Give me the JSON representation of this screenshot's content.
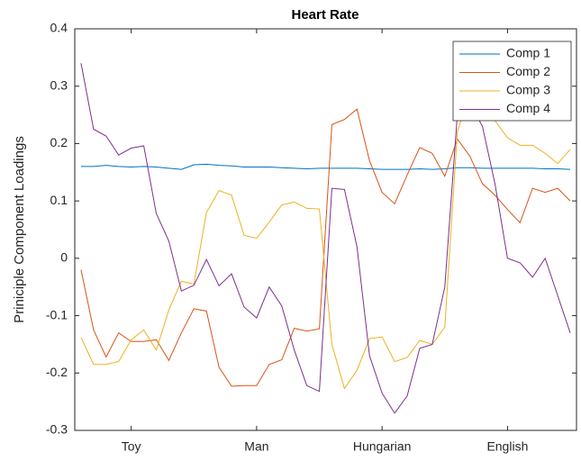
{
  "chart_data": {
    "type": "line",
    "title": "Heart Rate",
    "y_label": "Priniciple Component Loadings",
    "x": [
      1,
      2,
      3,
      4,
      5,
      6,
      7,
      8,
      9,
      10,
      11,
      12,
      13,
      14,
      15,
      16,
      17,
      18,
      19,
      20,
      21,
      22,
      23,
      24,
      25,
      26,
      27,
      28,
      29,
      30,
      31,
      32,
      33,
      34,
      35,
      36,
      37,
      38,
      39,
      40
    ],
    "xlim": [
      0.5,
      40.5
    ],
    "xticks": [
      {
        "value": 5,
        "label": "Toy"
      },
      {
        "value": 15,
        "label": "Man"
      },
      {
        "value": 25,
        "label": "Hungarian"
      },
      {
        "value": 35,
        "label": "English"
      }
    ],
    "ylim": [
      -0.3,
      0.4
    ],
    "yticks": [
      -0.3,
      -0.2,
      -0.1,
      0,
      0.1,
      0.2,
      0.3,
      0.4
    ],
    "legend": "northeast",
    "grid": false,
    "series": [
      {
        "name": "Comp 1",
        "color": "#0072BD",
        "values": [
          0.16,
          0.16,
          0.162,
          0.16,
          0.159,
          0.16,
          0.159,
          0.157,
          0.155,
          0.163,
          0.164,
          0.162,
          0.161,
          0.159,
          0.159,
          0.159,
          0.158,
          0.157,
          0.156,
          0.157,
          0.157,
          0.157,
          0.157,
          0.156,
          0.155,
          0.155,
          0.155,
          0.156,
          0.155,
          0.156,
          0.158,
          0.158,
          0.157,
          0.157,
          0.157,
          0.157,
          0.157,
          0.156,
          0.156,
          0.155
        ]
      },
      {
        "name": "Comp 2",
        "color": "#D95319",
        "values": [
          -0.02,
          -0.125,
          -0.172,
          -0.13,
          -0.145,
          -0.145,
          -0.142,
          -0.178,
          -0.13,
          -0.088,
          -0.092,
          -0.19,
          -0.223,
          -0.222,
          -0.222,
          -0.185,
          -0.177,
          -0.122,
          -0.127,
          -0.123,
          0.233,
          0.242,
          0.26,
          0.17,
          0.115,
          0.095,
          0.145,
          0.193,
          0.183,
          0.143,
          0.208,
          0.178,
          0.13,
          0.11,
          0.085,
          0.062,
          0.122,
          0.115,
          0.122,
          0.1
        ]
      },
      {
        "name": "Comp 3",
        "color": "#EDB120",
        "values": [
          -0.138,
          -0.185,
          -0.185,
          -0.18,
          -0.142,
          -0.125,
          -0.16,
          -0.09,
          -0.04,
          -0.045,
          0.08,
          0.118,
          0.11,
          0.04,
          0.035,
          0.063,
          0.093,
          0.098,
          0.087,
          0.086,
          -0.15,
          -0.227,
          -0.195,
          -0.14,
          -0.137,
          -0.18,
          -0.173,
          -0.143,
          -0.15,
          -0.12,
          0.22,
          0.29,
          0.27,
          0.24,
          0.21,
          0.197,
          0.197,
          0.183,
          0.165,
          0.19
        ]
      },
      {
        "name": "Comp 4",
        "color": "#7E2F8E",
        "values": [
          0.34,
          0.225,
          0.213,
          0.18,
          0.192,
          0.196,
          0.078,
          0.03,
          -0.057,
          -0.047,
          -0.002,
          -0.048,
          -0.027,
          -0.085,
          -0.104,
          -0.05,
          -0.083,
          -0.16,
          -0.222,
          -0.232,
          0.122,
          0.12,
          0.02,
          -0.17,
          -0.235,
          -0.27,
          -0.24,
          -0.157,
          -0.15,
          -0.05,
          0.25,
          0.27,
          0.23,
          0.13,
          0.0,
          -0.008,
          -0.033,
          0.0,
          -0.065,
          -0.13
        ]
      }
    ]
  }
}
